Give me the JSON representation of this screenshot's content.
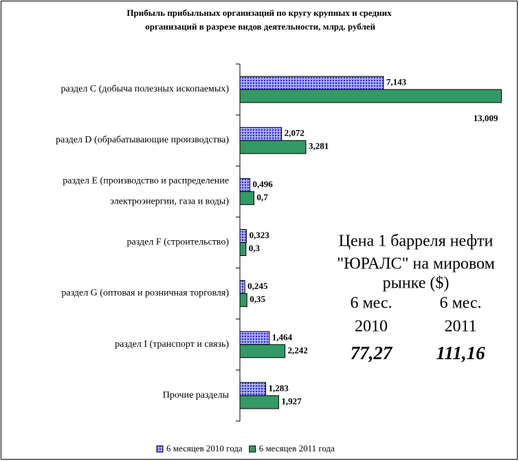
{
  "chart_data": {
    "type": "bar",
    "orientation": "horizontal",
    "title": "Прибыль прибыльных организаций по кругу крупных и средних организаций в разрезе видов деятельности, млрд. рублей",
    "categories": [
      "раздел C  (добыча полезных ископаемых)",
      "раздел D (обрабатывающие производства)",
      "раздел E (производство и распределение электроэнергии, газа и воды)",
      "раздел F (строительство)",
      "раздел G (оптовая и розничная торговля)",
      "раздел I (транспорт и связь)",
      "Прочие разделы"
    ],
    "series": [
      {
        "name": "6 месяцев 2010 года",
        "color": "#9999ff",
        "values": [
          7.143,
          2.072,
          0.496,
          0.323,
          0.245,
          1.464,
          1.283
        ],
        "value_labels": [
          "7,143",
          "2,072",
          "0,496",
          "0,323",
          "0,245",
          "1,464",
          "1,283"
        ]
      },
      {
        "name": "6 месяцев 2011 года",
        "color": "#339966",
        "values": [
          13.009,
          3.281,
          0.7,
          0.3,
          0.35,
          2.242,
          1.927
        ],
        "value_labels": [
          "13,009",
          "3,281",
          "0,7",
          "0,3",
          "0,35",
          "2,242",
          "1,927"
        ]
      }
    ],
    "xlim": [
      0,
      13.2
    ],
    "legend": "bottom",
    "annotations": [
      "Цена 1 барреля нефти",
      "\"ЮРАЛС\" на мировом",
      "рынке  ($)",
      "6 мес.",
      "6 мес.",
      "2010",
      "2011",
      "77,27",
      "111,16"
    ]
  }
}
